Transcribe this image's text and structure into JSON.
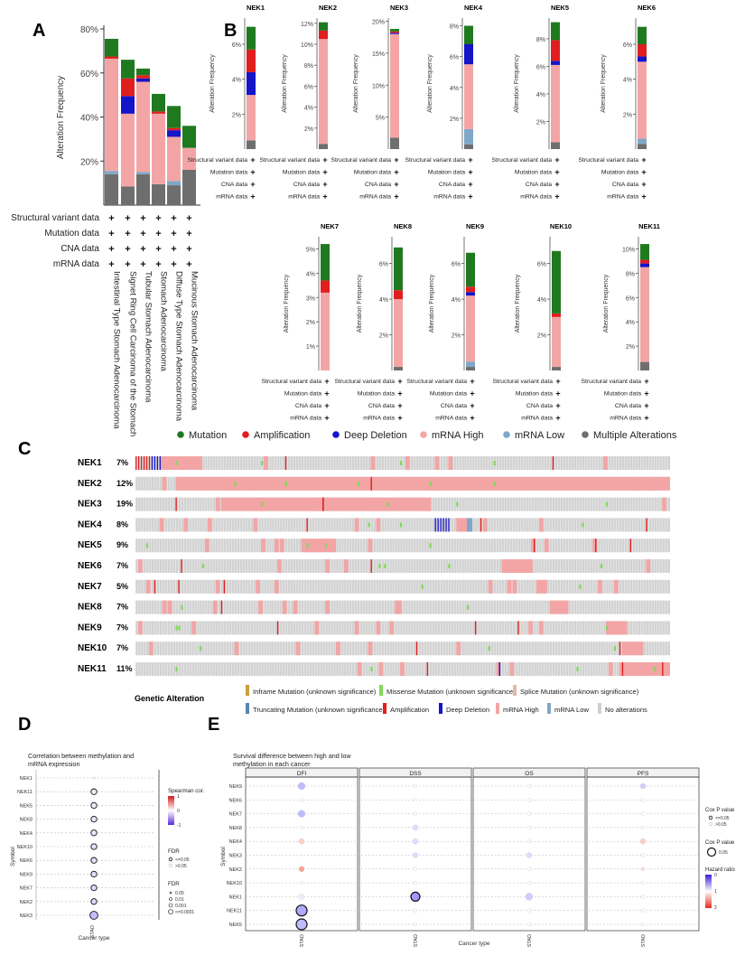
{
  "panel_letters": [
    "A",
    "B",
    "C",
    "D",
    "E"
  ],
  "colors": {
    "mutation": "#1f7a1f",
    "amplification": "#e01e1e",
    "deep_deletion": "#1414c8",
    "mrna_high": "#f3a5a5",
    "mrna_low": "#7fa7c9",
    "multiple": "#6e6e6e",
    "missense": "#7ed957",
    "splice": "#e8b8a0",
    "inframe": "#c8a040",
    "truncating": "#5b84b1",
    "no_alt": "#cfcfcf"
  },
  "profile_rows": [
    "Structural variant data",
    "Mutation data",
    "CNA data",
    "mRNA data"
  ],
  "profile_mark": "+",
  "chart_data": [
    {
      "type": "bar",
      "stacked": true,
      "panel": "A",
      "ylabel": "Alteration Frequency",
      "yticks": [
        "20%",
        "40%",
        "60%",
        "80%"
      ],
      "ylim": [
        0,
        80
      ],
      "categories": [
        "Intestinal Type Stomach Adenocarcinoma",
        "Signet Ring Cell Carcinoma of the Stomach",
        "Tubular Stomach Adenocarcinoma",
        "Stomach Adenocarcinoma",
        "Diffuse Type Stomach Adenocarcinoma",
        "Mucinous Stomach Adenocarcinoma"
      ],
      "series": [
        {
          "key": "multiple",
          "values": [
            14,
            8.5,
            14,
            9.5,
            9,
            16
          ]
        },
        {
          "key": "mrna_low",
          "values": [
            1.5,
            0,
            1,
            0,
            2,
            0
          ]
        },
        {
          "key": "mrna_high",
          "values": [
            51,
            33,
            41,
            32,
            20,
            10
          ]
        },
        {
          "key": "deep_deletion",
          "values": [
            0,
            8,
            1.5,
            0,
            3,
            0
          ]
        },
        {
          "key": "amplification",
          "values": [
            1,
            8,
            1.5,
            1,
            1,
            0
          ]
        },
        {
          "key": "mutation",
          "values": [
            8,
            8.5,
            3,
            8,
            10,
            10
          ]
        }
      ]
    },
    {
      "type": "bar",
      "stacked": true,
      "panel": "B",
      "ylabel": "Alteration Frequency",
      "panels": [
        {
          "gene": "NEK1",
          "ymax": 7.5,
          "ticks": [
            [
              2,
              "2%"
            ],
            [
              4,
              "4%"
            ],
            [
              6,
              "6%"
            ]
          ],
          "segs": {
            "multiple": 0.5,
            "mrna_low": 0,
            "mrna_high": 2.6,
            "deep_deletion": 1.3,
            "amplification": 1.3,
            "mutation": 1.3
          }
        },
        {
          "gene": "NEK2",
          "ymax": 12.5,
          "ticks": [
            [
              2,
              "2%"
            ],
            [
              4,
              "4%"
            ],
            [
              6,
              "6%"
            ],
            [
              8,
              "8%"
            ],
            [
              10,
              "10%"
            ],
            [
              12,
              "12%"
            ]
          ],
          "segs": {
            "multiple": 0.5,
            "mrna_low": 0,
            "mrna_high": 10,
            "deep_deletion": 0,
            "amplification": 0.8,
            "mutation": 0.8
          }
        },
        {
          "gene": "NEK3",
          "ymax": 20.5,
          "ticks": [
            [
              5,
              "5%"
            ],
            [
              10,
              "10%"
            ],
            [
              15,
              "15%"
            ],
            [
              20,
              "20%"
            ]
          ],
          "segs": {
            "multiple": 1.8,
            "mrna_low": 0,
            "mrna_high": 16.2,
            "deep_deletion": 0.2,
            "amplification": 0.2,
            "mutation": 0.4
          }
        },
        {
          "gene": "NEK4",
          "ymax": 8.5,
          "ticks": [
            [
              2,
              "2%"
            ],
            [
              4,
              "4%"
            ],
            [
              6,
              "6%"
            ],
            [
              8,
              "8%"
            ]
          ],
          "segs": {
            "multiple": 0.3,
            "mrna_low": 1,
            "mrna_high": 4.2,
            "deep_deletion": 1.3,
            "amplification": 0,
            "mutation": 1.2
          }
        },
        {
          "gene": "NEK5",
          "ymax": 9.5,
          "ticks": [
            [
              2,
              "2%"
            ],
            [
              4,
              "4%"
            ],
            [
              6,
              "6%"
            ],
            [
              8,
              "8%"
            ]
          ],
          "segs": {
            "multiple": 0.5,
            "mrna_low": 0,
            "mrna_high": 5.6,
            "deep_deletion": 0.3,
            "amplification": 1.5,
            "mutation": 1.3
          }
        },
        {
          "gene": "NEK6",
          "ymax": 7.5,
          "ticks": [
            [
              2,
              "2%"
            ],
            [
              4,
              "4%"
            ],
            [
              6,
              "6%"
            ]
          ],
          "segs": {
            "multiple": 0.3,
            "mrna_low": 0.3,
            "mrna_high": 4.4,
            "deep_deletion": 0.3,
            "amplification": 0.7,
            "mutation": 1
          }
        },
        {
          "gene": "NEK7",
          "ymax": 5.5,
          "ticks": [
            [
              1,
              "1%"
            ],
            [
              2,
              "2%"
            ],
            [
              3,
              "3%"
            ],
            [
              4,
              "4%"
            ],
            [
              5,
              "5%"
            ]
          ],
          "segs": {
            "multiple": 0,
            "mrna_low": 0,
            "mrna_high": 3.2,
            "deep_deletion": 0,
            "amplification": 0.5,
            "mutation": 1.5
          }
        },
        {
          "gene": "NEK8",
          "ymax": 7.5,
          "ticks": [
            [
              2,
              "2%"
            ],
            [
              4,
              "4%"
            ],
            [
              6,
              "6%"
            ]
          ],
          "segs": {
            "multiple": 0.2,
            "mrna_low": 0,
            "mrna_high": 3.8,
            "deep_deletion": 0,
            "amplification": 0.5,
            "mutation": 2.4
          }
        },
        {
          "gene": "NEK9",
          "ymax": 7.5,
          "ticks": [
            [
              2,
              "2%"
            ],
            [
              4,
              "4%"
            ],
            [
              6,
              "6%"
            ]
          ],
          "segs": {
            "multiple": 0.2,
            "mrna_low": 0.3,
            "mrna_high": 3.7,
            "deep_deletion": 0.2,
            "amplification": 0.3,
            "mutation": 1.9
          }
        },
        {
          "gene": "NEK10",
          "ymax": 7.5,
          "ticks": [
            [
              2,
              "2%"
            ],
            [
              4,
              "4%"
            ],
            [
              6,
              "6%"
            ]
          ],
          "segs": {
            "multiple": 0.2,
            "mrna_low": 0,
            "mrna_high": 2.8,
            "deep_deletion": 0,
            "amplification": 0.2,
            "mutation": 3.5
          }
        },
        {
          "gene": "NEK11",
          "ymax": 11,
          "ticks": [
            [
              2,
              "2%"
            ],
            [
              4,
              "4%"
            ],
            [
              6,
              "6%"
            ],
            [
              8,
              "8%"
            ],
            [
              10,
              "10%"
            ]
          ],
          "segs": {
            "multiple": 0.7,
            "mrna_low": 0,
            "mrna_high": 7.8,
            "deep_deletion": 0.3,
            "amplification": 0.3,
            "mutation": 1.3
          }
        }
      ]
    },
    {
      "type": "heatmap",
      "panel": "C",
      "legend_top": [
        {
          "key": "mutation",
          "label": "Mutation"
        },
        {
          "key": "amplification",
          "label": "Amplification"
        },
        {
          "key": "deep_deletion",
          "label": "Deep Deletion"
        },
        {
          "key": "mrna_high",
          "label": "mRNA High"
        },
        {
          "key": "mrna_low",
          "label": "mRNA Low"
        },
        {
          "key": "multiple",
          "label": "Multiple Alterations"
        }
      ],
      "rows": [
        {
          "gene": "NEK1",
          "pct": "7%"
        },
        {
          "gene": "NEK2",
          "pct": "12%"
        },
        {
          "gene": "NEK3",
          "pct": "19%"
        },
        {
          "gene": "NEK4",
          "pct": "8%"
        },
        {
          "gene": "NEK5",
          "pct": "9%"
        },
        {
          "gene": "NEK6",
          "pct": "7%"
        },
        {
          "gene": "NEK7",
          "pct": "5%"
        },
        {
          "gene": "NEK8",
          "pct": "7%"
        },
        {
          "gene": "NEK9",
          "pct": "7%"
        },
        {
          "gene": "NEK10",
          "pct": "7%"
        },
        {
          "gene": "NEK11",
          "pct": "11%"
        }
      ],
      "genetic_alteration_label": "Genetic Alteration",
      "legend_bottom": [
        {
          "key": "inframe",
          "label": "Inframe Mutation (unknown significance)"
        },
        {
          "key": "missense",
          "label": "Missense Mutation (unknown significance)"
        },
        {
          "key": "splice",
          "label": "Splice Mutation (unknown significance)"
        },
        {
          "key": "truncating",
          "label": "Truncating Mutation (unknown significance)"
        },
        {
          "key": "amplification",
          "label": "Amplification"
        },
        {
          "key": "deep_deletion",
          "label": "Deep Deletion"
        },
        {
          "key": "mrna_high",
          "label": "mRNA High"
        },
        {
          "key": "mrna_low",
          "label": "mRNA Low"
        },
        {
          "key": "no_alt",
          "label": "No alterations"
        }
      ]
    },
    {
      "type": "scatter",
      "panel": "D",
      "title": "Correlation between methylation and mRNA expression",
      "xlabel": "Cancer type",
      "ylabel": "Symbol",
      "x": [
        "STAD"
      ],
      "symbols": [
        "NEK1",
        "NEK11",
        "NEK5",
        "NEK8",
        "NEK4",
        "NEK10",
        "NEK6",
        "NEK9",
        "NEK7",
        "NEK2",
        "NEK3"
      ],
      "corr": [
        -0.05,
        -0.1,
        -0.12,
        -0.15,
        -0.15,
        -0.18,
        -0.18,
        -0.2,
        -0.22,
        -0.25,
        -0.4
      ],
      "size": [
        0,
        2,
        2,
        2,
        2,
        2,
        2,
        2,
        2,
        2,
        3
      ],
      "sig": [
        false,
        true,
        true,
        true,
        true,
        true,
        true,
        true,
        true,
        true,
        true
      ],
      "legend": {
        "corr_title": "Spearman cor.",
        "corr_ticks": [
          "1",
          "0",
          "-1"
        ],
        "fdr_title": "FDR",
        "fdr_sig": [
          "<=0.05",
          ">0.05"
        ],
        "fdr2_title": "FDR",
        "fdr_sizes": [
          "0.05",
          "0.01",
          "0.001",
          "<=0.0001"
        ]
      }
    },
    {
      "type": "scatter",
      "panel": "E",
      "title": "Survival difference between high and low methylation in each cancer",
      "xlabel": "Cancer type",
      "ylabel": "Symbol",
      "facets": [
        "DFI",
        "DSS",
        "OS",
        "PFS"
      ],
      "x": [
        "STAD"
      ],
      "symbols": [
        "NEK9",
        "NEK6",
        "NEK7",
        "NEK8",
        "NEK4",
        "NEK3",
        "NEK2",
        "NEK10",
        "NEK1",
        "NEK11",
        "NEK5"
      ],
      "hr": [
        [
          0.6,
          1.0,
          1.0,
          0.7
        ],
        [
          1.0,
          1.0,
          1.0,
          1.0
        ],
        [
          0.6,
          1.0,
          1.0,
          1.0
        ],
        [
          1.0,
          0.8,
          1.0,
          1.0
        ],
        [
          1.3,
          0.8,
          1.0,
          1.3
        ],
        [
          1.0,
          0.8,
          0.8,
          1.0
        ],
        [
          1.6,
          1.0,
          1.0,
          1.2
        ],
        [
          1.0,
          1.0,
          1.0,
          1.0
        ],
        [
          0.9,
          0.4,
          0.7,
          1.0
        ],
        [
          0.5,
          1.0,
          1.0,
          1.0
        ],
        [
          0.6,
          1.0,
          1.0,
          1.0
        ]
      ],
      "r": [
        [
          4,
          2,
          2,
          3
        ],
        [
          2,
          2,
          2,
          2
        ],
        [
          4,
          2,
          2,
          2
        ],
        [
          2,
          3,
          2,
          2
        ],
        [
          3,
          3,
          2,
          3
        ],
        [
          1,
          3,
          3,
          2
        ],
        [
          3,
          2,
          2,
          2
        ],
        [
          2,
          2,
          2,
          2
        ],
        [
          3,
          5,
          4,
          2
        ],
        [
          6,
          2,
          2,
          2
        ],
        [
          6,
          2,
          2,
          2
        ]
      ],
      "sig": [
        [
          false,
          false,
          false,
          false
        ],
        [
          false,
          false,
          false,
          false
        ],
        [
          false,
          false,
          false,
          false
        ],
        [
          false,
          false,
          false,
          false
        ],
        [
          false,
          false,
          false,
          false
        ],
        [
          false,
          false,
          false,
          false
        ],
        [
          false,
          false,
          false,
          false
        ],
        [
          false,
          false,
          false,
          false
        ],
        [
          false,
          true,
          false,
          false
        ],
        [
          true,
          false,
          false,
          false
        ],
        [
          true,
          false,
          false,
          false
        ]
      ],
      "legend": {
        "p_title": "Cox P value",
        "p_items": [
          "<=0.05",
          ">0.05"
        ],
        "p2_title": "Cox P value",
        "p2_item": "0.05",
        "hr_title": "Hazard ratio",
        "hr_ticks": [
          "0",
          "1",
          "2"
        ]
      }
    }
  ]
}
